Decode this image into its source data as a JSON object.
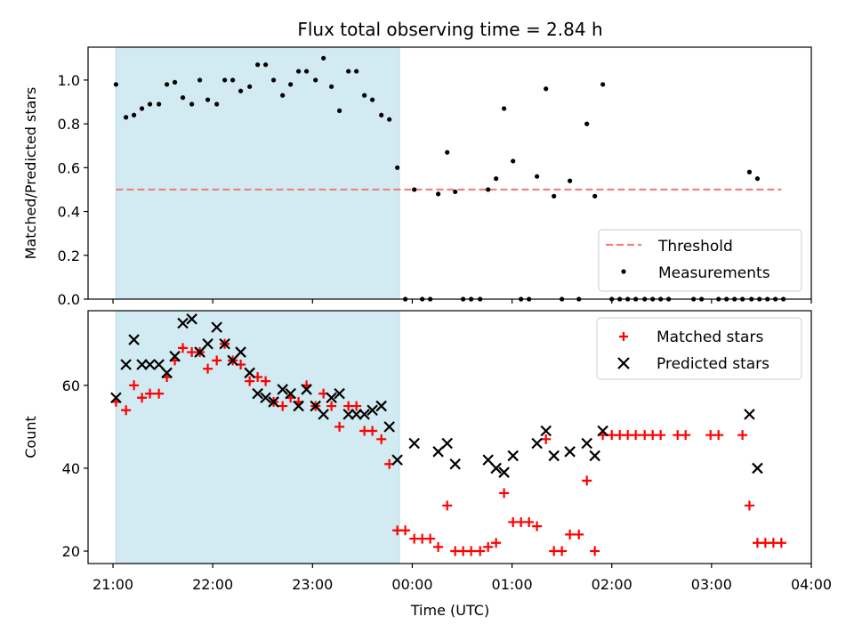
{
  "chart_data": {
    "title": "Flux total observing time = 2.84 h",
    "xlabel": "Time (UTC)",
    "x_unit": "hours since 21:00 UTC",
    "xlim": [
      -0.25,
      7.0
    ],
    "x_ticks": [
      {
        "value": 0,
        "label": "21:00"
      },
      {
        "value": 1,
        "label": "22:00"
      },
      {
        "value": 2,
        "label": "23:00"
      },
      {
        "value": 3,
        "label": "00:00"
      },
      {
        "value": 4,
        "label": "01:00"
      },
      {
        "value": 5,
        "label": "02:00"
      },
      {
        "value": 6,
        "label": "03:00"
      },
      {
        "value": 7,
        "label": "04:00"
      }
    ],
    "observing_window": {
      "start": 0.03,
      "end": 2.87,
      "color": "#add8e6"
    },
    "panels": [
      {
        "type": "scatter",
        "ylabel": "Matched/Predicted stars",
        "ylim": [
          0,
          1.15
        ],
        "y_ticks": [
          0.0,
          0.2,
          0.4,
          0.6,
          0.8,
          1.0
        ],
        "y_tick_labels": [
          "0.0",
          "0.2",
          "0.4",
          "0.6",
          "0.8",
          "1.0"
        ],
        "threshold": {
          "name": "Threshold",
          "value": 0.5,
          "x_start": 0.03,
          "x_end": 6.7,
          "color": "#f08080"
        },
        "legend": {
          "location": "lower right",
          "entries": [
            "Threshold",
            "Measurements"
          ]
        },
        "series": [
          {
            "name": "Measurements",
            "color": "#000000",
            "marker": "dot",
            "points": [
              [
                0.03,
                0.98
              ],
              [
                0.13,
                0.83
              ],
              [
                0.21,
                0.84
              ],
              [
                0.29,
                0.87
              ],
              [
                0.37,
                0.89
              ],
              [
                0.46,
                0.89
              ],
              [
                0.54,
                0.98
              ],
              [
                0.62,
                0.99
              ],
              [
                0.7,
                0.92
              ],
              [
                0.79,
                0.89
              ],
              [
                0.87,
                1.0
              ],
              [
                0.95,
                0.91
              ],
              [
                1.04,
                0.89
              ],
              [
                1.12,
                1.0
              ],
              [
                1.2,
                1.0
              ],
              [
                1.28,
                0.95
              ],
              [
                1.37,
                0.97
              ],
              [
                1.45,
                1.07
              ],
              [
                1.53,
                1.07
              ],
              [
                1.61,
                1.0
              ],
              [
                1.7,
                0.93
              ],
              [
                1.78,
                0.98
              ],
              [
                1.86,
                1.04
              ],
              [
                1.94,
                1.04
              ],
              [
                2.03,
                1.0
              ],
              [
                2.11,
                1.1
              ],
              [
                2.19,
                0.97
              ],
              [
                2.27,
                0.86
              ],
              [
                2.36,
                1.04
              ],
              [
                2.44,
                1.04
              ],
              [
                2.52,
                0.93
              ],
              [
                2.6,
                0.91
              ],
              [
                2.69,
                0.84
              ],
              [
                2.77,
                0.82
              ],
              [
                2.85,
                0.6
              ],
              [
                2.93,
                0.0
              ],
              [
                3.02,
                0.5
              ],
              [
                3.1,
                0.0
              ],
              [
                3.18,
                0.0
              ],
              [
                3.26,
                0.48
              ],
              [
                3.35,
                0.67
              ],
              [
                3.43,
                0.49
              ],
              [
                3.51,
                0.0
              ],
              [
                3.59,
                0.0
              ],
              [
                3.68,
                0.0
              ],
              [
                3.76,
                0.5
              ],
              [
                3.84,
                0.55
              ],
              [
                3.92,
                0.87
              ],
              [
                4.01,
                0.63
              ],
              [
                4.09,
                0.0
              ],
              [
                4.17,
                0.0
              ],
              [
                4.25,
                0.56
              ],
              [
                4.34,
                0.96
              ],
              [
                4.42,
                0.47
              ],
              [
                4.5,
                0.0
              ],
              [
                4.58,
                0.54
              ],
              [
                4.67,
                0.0
              ],
              [
                4.75,
                0.8
              ],
              [
                4.83,
                0.47
              ],
              [
                4.91,
                0.98
              ],
              [
                5.0,
                0.0
              ],
              [
                5.08,
                0.0
              ],
              [
                5.16,
                0.0
              ],
              [
                5.24,
                0.0
              ],
              [
                5.33,
                0.0
              ],
              [
                5.41,
                0.0
              ],
              [
                5.49,
                0.0
              ],
              [
                5.57,
                0.0
              ],
              [
                5.82,
                0.0
              ],
              [
                5.9,
                0.0
              ],
              [
                6.07,
                0.0
              ],
              [
                6.15,
                0.0
              ],
              [
                6.23,
                0.0
              ],
              [
                6.31,
                0.0
              ],
              [
                6.4,
                0.0
              ],
              [
                6.48,
                0.0
              ],
              [
                6.56,
                0.0
              ],
              [
                6.38,
                0.58
              ],
              [
                6.46,
                0.55
              ],
              [
                6.64,
                0.0
              ],
              [
                6.72,
                0.0
              ]
            ]
          }
        ]
      },
      {
        "type": "scatter",
        "ylabel": "Count",
        "ylim": [
          17,
          78
        ],
        "y_ticks": [
          20,
          40,
          60
        ],
        "y_tick_labels": [
          "20",
          "40",
          "60"
        ],
        "legend": {
          "location": "upper right",
          "entries": [
            "Matched stars",
            "Predicted stars"
          ]
        },
        "series": [
          {
            "name": "Matched stars",
            "color": "#ff0000",
            "marker": "plus",
            "points": [
              [
                0.03,
                56
              ],
              [
                0.13,
                54
              ],
              [
                0.21,
                60
              ],
              [
                0.29,
                57
              ],
              [
                0.37,
                58
              ],
              [
                0.46,
                58
              ],
              [
                0.54,
                62
              ],
              [
                0.62,
                66
              ],
              [
                0.7,
                69
              ],
              [
                0.79,
                68
              ],
              [
                0.87,
                68
              ],
              [
                0.95,
                64
              ],
              [
                1.04,
                66
              ],
              [
                1.12,
                70
              ],
              [
                1.2,
                66
              ],
              [
                1.28,
                65
              ],
              [
                1.37,
                61
              ],
              [
                1.45,
                62
              ],
              [
                1.53,
                61
              ],
              [
                1.61,
                56
              ],
              [
                1.7,
                55
              ],
              [
                1.78,
                57
              ],
              [
                1.86,
                56
              ],
              [
                1.94,
                60
              ],
              [
                2.03,
                55
              ],
              [
                2.11,
                58
              ],
              [
                2.19,
                55
              ],
              [
                2.27,
                50
              ],
              [
                2.36,
                55
              ],
              [
                2.44,
                55
              ],
              [
                2.52,
                49
              ],
              [
                2.6,
                49
              ],
              [
                2.69,
                47
              ],
              [
                2.77,
                41
              ],
              [
                2.85,
                25
              ],
              [
                2.93,
                25
              ],
              [
                3.02,
                23
              ],
              [
                3.1,
                23
              ],
              [
                3.18,
                23
              ],
              [
                3.26,
                21
              ],
              [
                3.35,
                31
              ],
              [
                3.43,
                20
              ],
              [
                3.51,
                20
              ],
              [
                3.59,
                20
              ],
              [
                3.68,
                20
              ],
              [
                3.76,
                21
              ],
              [
                3.84,
                22
              ],
              [
                3.92,
                34
              ],
              [
                4.01,
                27
              ],
              [
                4.09,
                27
              ],
              [
                4.17,
                27
              ],
              [
                4.25,
                26
              ],
              [
                4.34,
                47
              ],
              [
                4.42,
                20
              ],
              [
                4.5,
                20
              ],
              [
                4.58,
                24
              ],
              [
                4.67,
                24
              ],
              [
                4.75,
                37
              ],
              [
                4.83,
                20
              ],
              [
                4.91,
                48
              ],
              [
                5.0,
                48
              ],
              [
                5.08,
                48
              ],
              [
                5.16,
                48
              ],
              [
                5.24,
                48
              ],
              [
                5.33,
                48
              ],
              [
                5.41,
                48
              ],
              [
                5.49,
                48
              ],
              [
                5.66,
                48
              ],
              [
                5.74,
                48
              ],
              [
                5.99,
                48
              ],
              [
                6.07,
                48
              ],
              [
                6.31,
                48
              ],
              [
                6.38,
                31
              ],
              [
                6.46,
                22
              ],
              [
                6.54,
                22
              ],
              [
                6.62,
                22
              ],
              [
                6.7,
                22
              ]
            ]
          },
          {
            "name": "Predicted stars",
            "color": "#000000",
            "marker": "x",
            "points": [
              [
                0.03,
                57
              ],
              [
                0.13,
                65
              ],
              [
                0.21,
                71
              ],
              [
                0.29,
                65
              ],
              [
                0.37,
                65
              ],
              [
                0.46,
                65
              ],
              [
                0.54,
                63
              ],
              [
                0.62,
                67
              ],
              [
                0.7,
                75
              ],
              [
                0.79,
                76
              ],
              [
                0.87,
                68
              ],
              [
                0.95,
                70
              ],
              [
                1.04,
                74
              ],
              [
                1.12,
                70
              ],
              [
                1.2,
                66
              ],
              [
                1.28,
                68
              ],
              [
                1.37,
                63
              ],
              [
                1.45,
                58
              ],
              [
                1.53,
                57
              ],
              [
                1.61,
                56
              ],
              [
                1.7,
                59
              ],
              [
                1.78,
                58
              ],
              [
                1.86,
                55
              ],
              [
                1.94,
                59
              ],
              [
                2.03,
                55
              ],
              [
                2.11,
                53
              ],
              [
                2.19,
                57
              ],
              [
                2.27,
                58
              ],
              [
                2.36,
                53
              ],
              [
                2.44,
                53
              ],
              [
                2.52,
                53
              ],
              [
                2.6,
                54
              ],
              [
                2.69,
                55
              ],
              [
                2.77,
                50
              ],
              [
                2.85,
                42
              ],
              [
                3.02,
                46
              ],
              [
                3.26,
                44
              ],
              [
                3.35,
                46
              ],
              [
                3.43,
                41
              ],
              [
                3.76,
                42
              ],
              [
                3.84,
                40
              ],
              [
                3.92,
                39
              ],
              [
                4.01,
                43
              ],
              [
                4.25,
                46
              ],
              [
                4.34,
                49
              ],
              [
                4.42,
                43
              ],
              [
                4.58,
                44
              ],
              [
                4.75,
                46
              ],
              [
                4.83,
                43
              ],
              [
                4.91,
                49
              ],
              [
                6.38,
                53
              ],
              [
                6.46,
                40
              ]
            ]
          }
        ]
      }
    ]
  }
}
